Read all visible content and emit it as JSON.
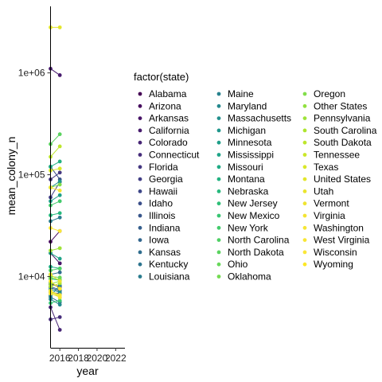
{
  "chart_data": {
    "type": "line",
    "title": "",
    "xlabel": "year",
    "ylabel": "mean_colony_n",
    "x_scale": "linear",
    "y_scale": "log10",
    "xlim": [
      2015,
      2023
    ],
    "ylim": [
      2000,
      4500000
    ],
    "x_ticks": [
      2016,
      2018,
      2020,
      2022
    ],
    "x_tick_labels": [
      "2016",
      "2018",
      "2020",
      "2022"
    ],
    "y_ticks": [
      10000,
      100000,
      1000000
    ],
    "y_tick_labels": [
      "1e+04",
      "1e+05",
      "1e+06"
    ],
    "grid": false,
    "legend": {
      "title": "factor(state)",
      "placement": "right"
    },
    "series": [
      {
        "name": "Alabama",
        "color": "#440154",
        "x": [
          2015,
          2016
        ],
        "y": [
          8400,
          8000
        ]
      },
      {
        "name": "Arizona",
        "color": "#460B5E",
        "x": [
          2015,
          2016
        ],
        "y": [
          22000,
          28000
        ]
      },
      {
        "name": "Arkansas",
        "color": "#481467",
        "x": [
          2015,
          2016
        ],
        "y": [
          17000,
          13500
        ]
      },
      {
        "name": "California",
        "color": "#481C6E",
        "x": [
          2015,
          2016
        ],
        "y": [
          1100000,
          950000
        ]
      },
      {
        "name": "Colorado",
        "color": "#472575",
        "x": [
          2015,
          2016
        ],
        "y": [
          5000,
          3000
        ]
      },
      {
        "name": "Connecticut",
        "color": "#462D7B",
        "x": [
          2015,
          2016
        ],
        "y": [
          3800,
          4000
        ]
      },
      {
        "name": "Florida",
        "color": "#443780",
        "x": [
          2015,
          2016
        ],
        "y": [
          90000,
          105000
        ]
      },
      {
        "name": "Georgia",
        "color": "#413E85",
        "x": [
          2015,
          2016
        ],
        "y": [
          60000,
          85000
        ]
      },
      {
        "name": "Hawaii",
        "color": "#3E4788",
        "x": [
          2015,
          2016
        ],
        "y": [
          7000,
          6800
        ]
      },
      {
        "name": "Idaho",
        "color": "#3B4F8A",
        "x": [
          2015,
          2016
        ],
        "y": [
          120000,
          90000
        ]
      },
      {
        "name": "Illinois",
        "color": "#38568B",
        "x": [
          2015,
          2016
        ],
        "y": [
          7800,
          7200
        ]
      },
      {
        "name": "Indiana",
        "color": "#355F8D",
        "x": [
          2015,
          2016
        ],
        "y": [
          8700,
          7700
        ]
      },
      {
        "name": "Iowa",
        "color": "#32668E",
        "x": [
          2015,
          2016
        ],
        "y": [
          8000,
          7400
        ]
      },
      {
        "name": "Kansas",
        "color": "#2F6D8E",
        "x": [
          2015,
          2016
        ],
        "y": [
          10500,
          11000
        ]
      },
      {
        "name": "Kentucky",
        "color": "#2D748E",
        "x": [
          2015,
          2016
        ],
        "y": [
          6300,
          5600
        ]
      },
      {
        "name": "Louisiana",
        "color": "#2A7C8E",
        "x": [
          2015,
          2016
        ],
        "y": [
          35000,
          38000
        ]
      },
      {
        "name": "Maine",
        "color": "#28828E",
        "x": [
          2015,
          2016
        ],
        "y": [
          6500,
          8200
        ]
      },
      {
        "name": "Maryland",
        "color": "#25898E",
        "x": [
          2015,
          2016
        ],
        "y": [
          6000,
          5300
        ]
      },
      {
        "name": "Massachusetts",
        "color": "#23908D",
        "x": [
          2015,
          2016
        ],
        "y": [
          7500,
          7000
        ]
      },
      {
        "name": "Michigan",
        "color": "#21978C",
        "x": [
          2015,
          2016
        ],
        "y": [
          75000,
          86000
        ]
      },
      {
        "name": "Minnesota",
        "color": "#1F9F89",
        "x": [
          2015,
          2016
        ],
        "y": [
          55000,
          63000
        ]
      },
      {
        "name": "Mississippi",
        "color": "#1FA488",
        "x": [
          2015,
          2016
        ],
        "y": [
          17000,
          15000
        ]
      },
      {
        "name": "Missouri",
        "color": "#20AB85",
        "x": [
          2015,
          2016
        ],
        "y": [
          12500,
          12000
        ]
      },
      {
        "name": "Montana",
        "color": "#22B281",
        "x": [
          2015,
          2016
        ],
        "y": [
          120000,
          135000
        ]
      },
      {
        "name": "Nebraska",
        "color": "#27B97D",
        "x": [
          2015,
          2016
        ],
        "y": [
          40000,
          42000
        ]
      },
      {
        "name": "New Jersey",
        "color": "#2FBF78",
        "x": [
          2015,
          2016
        ],
        "y": [
          9500,
          9200
        ]
      },
      {
        "name": "New Mexico",
        "color": "#38C572",
        "x": [
          2015,
          2016
        ],
        "y": [
          5500,
          5800
        ]
      },
      {
        "name": "New York",
        "color": "#43CB6C",
        "x": [
          2015,
          2016
        ],
        "y": [
          50000,
          55000
        ]
      },
      {
        "name": "North Carolina",
        "color": "#4FD065",
        "x": [
          2015,
          2016
        ],
        "y": [
          11500,
          12000
        ]
      },
      {
        "name": "North Dakota",
        "color": "#5AD35F",
        "x": [
          2015,
          2016
        ],
        "y": [
          200000,
          250000
        ]
      },
      {
        "name": "Ohio",
        "color": "#67D85A",
        "x": [
          2015,
          2016
        ],
        "y": [
          10000,
          9800
        ]
      },
      {
        "name": "Oklahoma",
        "color": "#74DB52",
        "x": [
          2015,
          2016
        ],
        "y": [
          9700,
          9400
        ]
      },
      {
        "name": "Oregon",
        "color": "#82DE4A",
        "x": [
          2015,
          2016
        ],
        "y": [
          75000,
          80000
        ]
      },
      {
        "name": "Other States",
        "color": "#91E13F",
        "x": [
          2015,
          2016
        ],
        "y": [
          8500,
          9000
        ]
      },
      {
        "name": "Pennsylvania",
        "color": "#9FE339",
        "x": [
          2015,
          2016
        ],
        "y": [
          18000,
          19000
        ]
      },
      {
        "name": "South Carolina",
        "color": "#AEE52F",
        "x": [
          2015,
          2016
        ],
        "y": [
          8000,
          8600
        ]
      },
      {
        "name": "South Dakota",
        "color": "#BDE62C",
        "x": [
          2015,
          2016
        ],
        "y": [
          150000,
          190000
        ]
      },
      {
        "name": "Tennessee",
        "color": "#CBE72A",
        "x": [
          2015,
          2016
        ],
        "y": [
          7300,
          6200
        ]
      },
      {
        "name": "Texas",
        "color": "#D9E82A",
        "x": [
          2015,
          2016
        ],
        "y": [
          110000,
          115000
        ]
      },
      {
        "name": "United States",
        "color": "#E3E62C",
        "x": [
          2015,
          2016
        ],
        "y": [
          2800000,
          2800000
        ]
      },
      {
        "name": "Utah",
        "color": "#EAE52F",
        "x": [
          2015,
          2016
        ],
        "y": [
          10500,
          9000
        ]
      },
      {
        "name": "Vermont",
        "color": "#EFE431",
        "x": [
          2015,
          2016
        ],
        "y": [
          7000,
          6500
        ]
      },
      {
        "name": "Virginia",
        "color": "#F3E433",
        "x": [
          2015,
          2016
        ],
        "y": [
          7200,
          6600
        ]
      },
      {
        "name": "Washington",
        "color": "#F6E635",
        "x": [
          2015,
          2016
        ],
        "y": [
          75000,
          70000
        ]
      },
      {
        "name": "West Virginia",
        "color": "#F8E636",
        "x": [
          2015,
          2016
        ],
        "y": [
          6800,
          6300
        ]
      },
      {
        "name": "Wisconsin",
        "color": "#FAE738",
        "x": [
          2015,
          2016
        ],
        "y": [
          30000,
          28000
        ]
      },
      {
        "name": "Wyoming",
        "color": "#FDE725",
        "x": [
          2015,
          2016
        ],
        "y": [
          9000,
          7600
        ]
      }
    ]
  }
}
